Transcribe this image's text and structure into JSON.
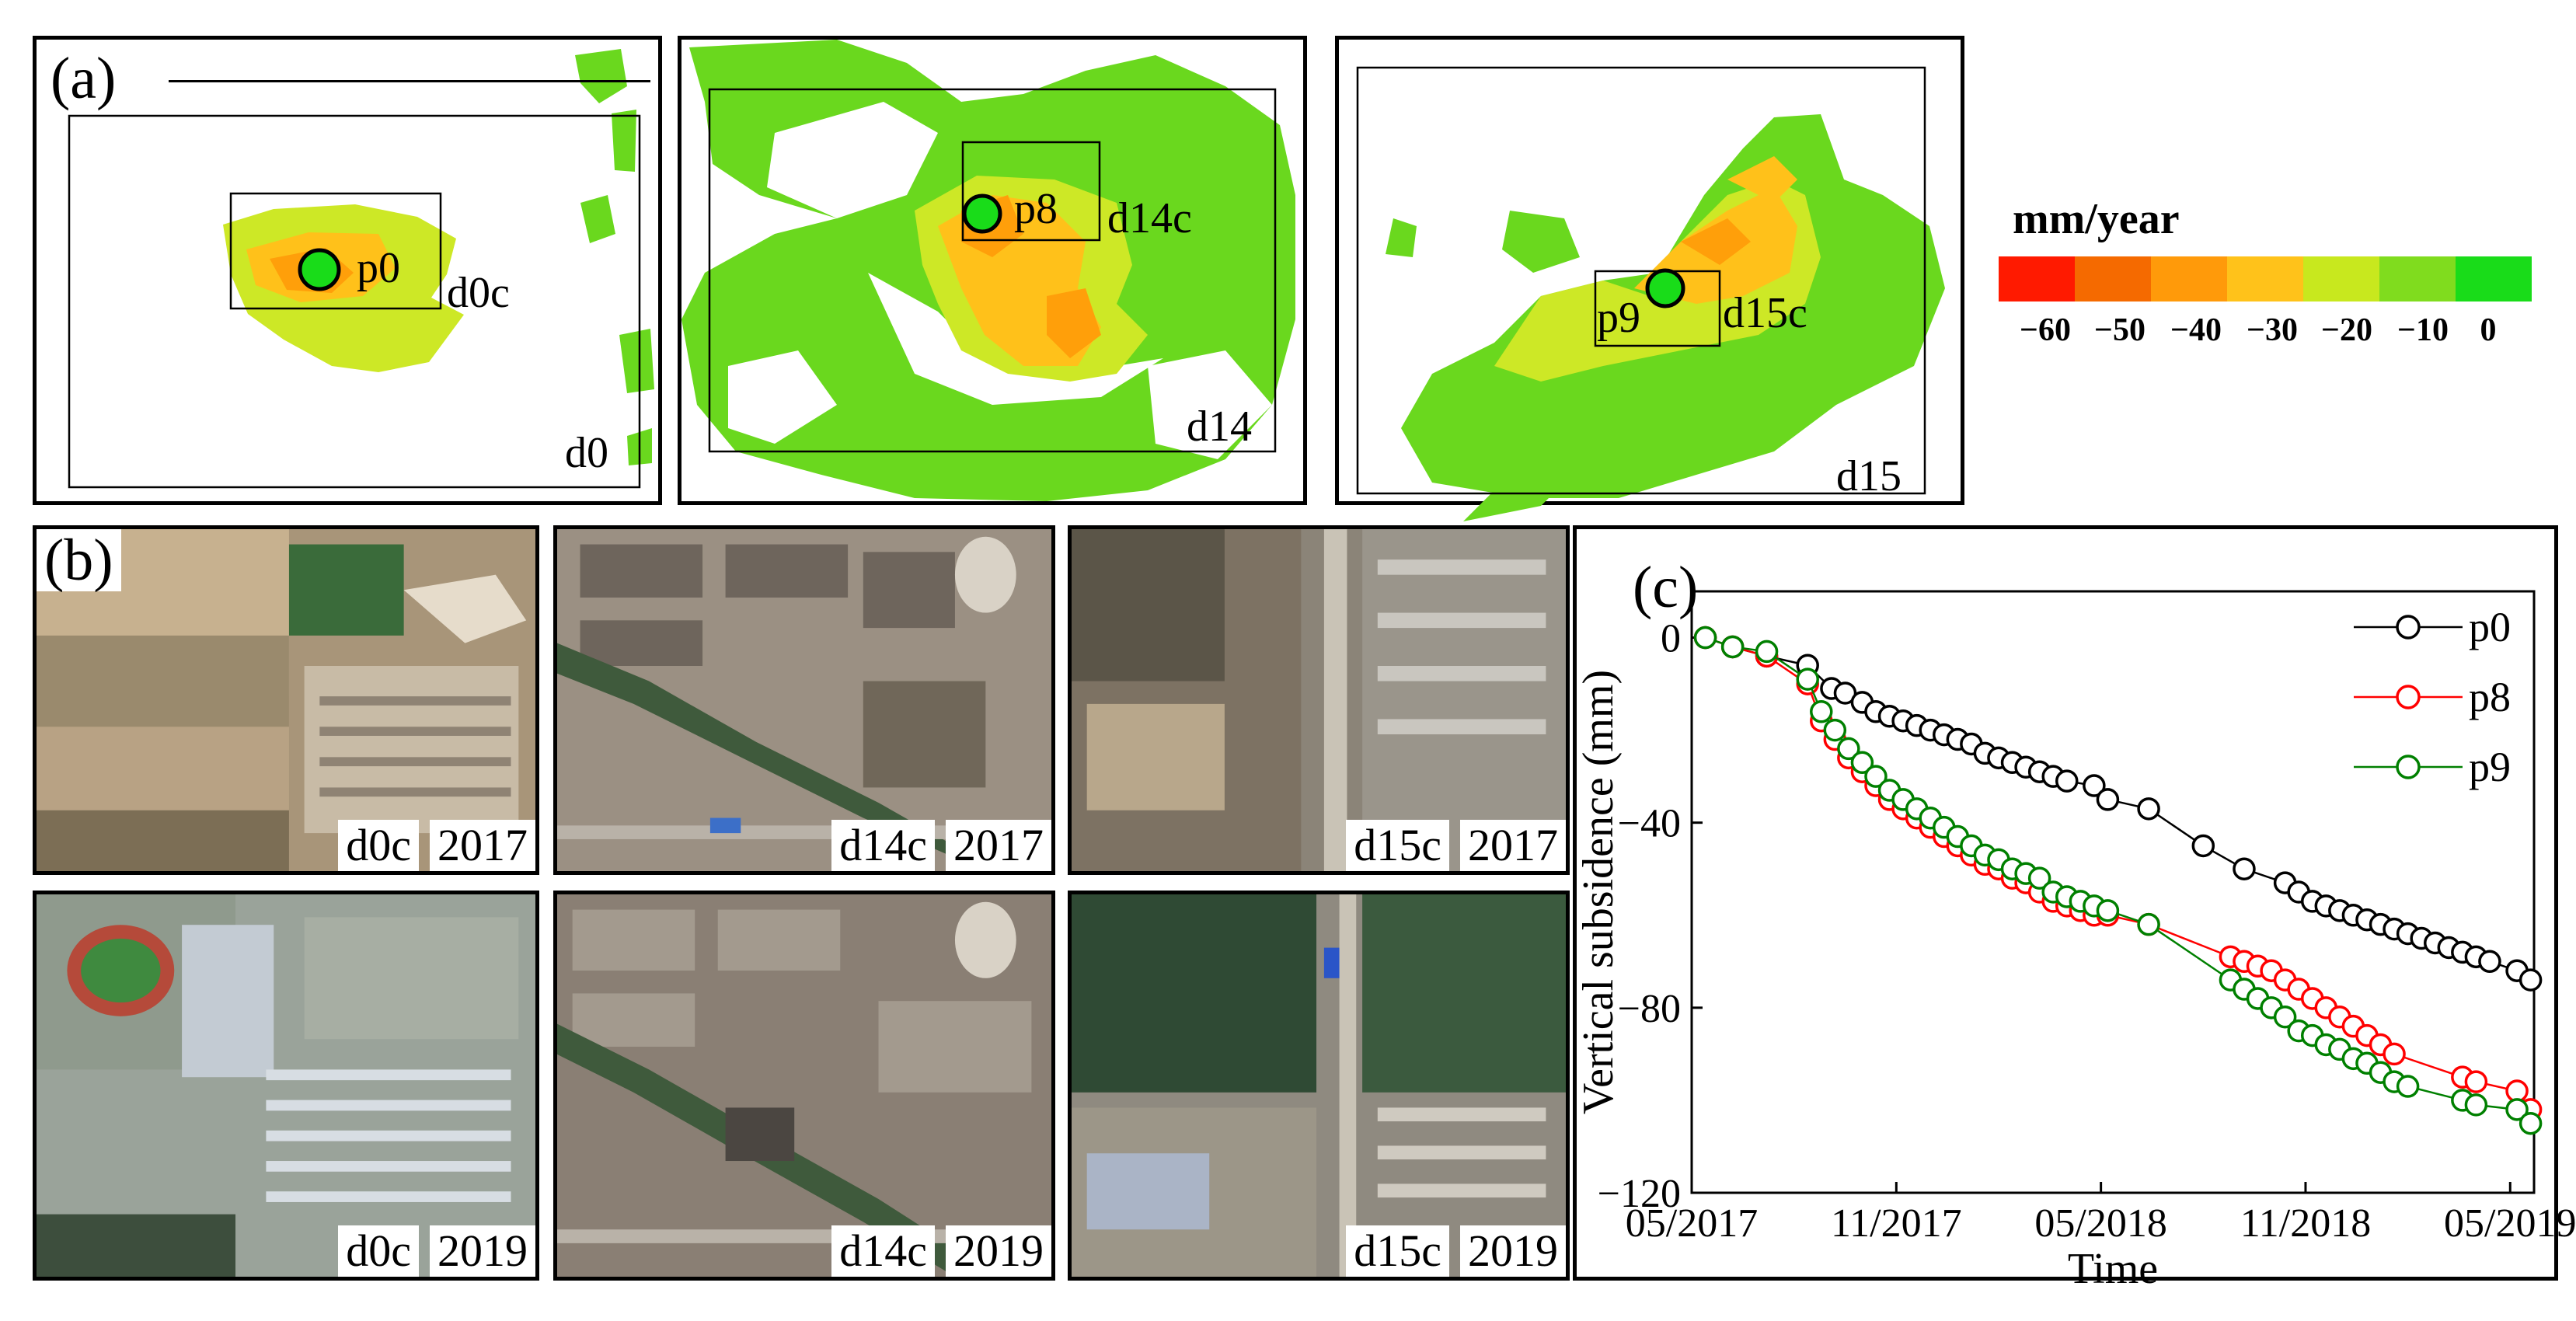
{
  "panel_a": {
    "label": "(a)",
    "maps": [
      {
        "region": "d0",
        "crop": "d0c",
        "point": "p0"
      },
      {
        "region": "d14",
        "crop": "d14c",
        "point": "p8"
      },
      {
        "region": "d15",
        "crop": "d15c",
        "point": "p9"
      }
    ],
    "colorbar": {
      "title": "mm/year",
      "ticks": [
        "−60",
        "−50",
        "−40",
        "−30",
        "−20",
        "−10",
        "0"
      ],
      "colors": [
        "#ff1a00",
        "#f56a00",
        "#ff9a0a",
        "#ffc21a",
        "#c8e81e",
        "#80dc1e",
        "#19dc19"
      ]
    }
  },
  "panel_b": {
    "label": "(b)",
    "images": [
      {
        "crop": "d0c",
        "year": "2017"
      },
      {
        "crop": "d14c",
        "year": "2017"
      },
      {
        "crop": "d15c",
        "year": "2017"
      },
      {
        "crop": "d0c",
        "year": "2019"
      },
      {
        "crop": "d14c",
        "year": "2019"
      },
      {
        "crop": "d15c",
        "year": "2019"
      }
    ]
  },
  "panel_c": {
    "label": "(c)",
    "chart_data": {
      "type": "line",
      "xlabel": "Time",
      "ylabel": "Vertical subsidence (mm)",
      "x_tick_labels": [
        "05/2017",
        "11/2017",
        "05/2018",
        "11/2018",
        "05/2019"
      ],
      "x_tick_months": [
        0,
        6,
        12,
        18,
        24
      ],
      "y_ticks": [
        0,
        -40,
        -80,
        -120
      ],
      "ylim": [
        -120,
        10
      ],
      "xlim": [
        0,
        24.7
      ],
      "x_unit": "months since 05/2017",
      "series": [
        {
          "name": "p0",
          "color": "#000000",
          "x": [
            0.4,
            1.2,
            2.2,
            3.4,
            4.1,
            4.5,
            5.0,
            5.4,
            5.8,
            6.2,
            6.6,
            7.0,
            7.4,
            7.8,
            8.2,
            8.6,
            9.0,
            9.4,
            9.8,
            10.2,
            10.6,
            11.0,
            11.8,
            12.2,
            13.4,
            15.0,
            16.2,
            17.4,
            17.8,
            18.2,
            18.6,
            19.0,
            19.4,
            19.8,
            20.2,
            20.6,
            21.0,
            21.4,
            21.8,
            22.2,
            22.6,
            23.0,
            23.4,
            24.2,
            24.6
          ],
          "y": [
            0,
            -2,
            -4,
            -6,
            -11,
            -12,
            -14,
            -16,
            -17,
            -18,
            -19,
            -20,
            -21,
            -22,
            -23,
            -25,
            -26,
            -27,
            -28,
            -29,
            -30,
            -31,
            -32,
            -35,
            -37,
            -45,
            -50,
            -53,
            -55,
            -57,
            -58,
            -59,
            -60,
            -61,
            -62,
            -63,
            -64,
            -65,
            -66,
            -67,
            -68,
            -69,
            -70,
            -72,
            -74
          ]
        },
        {
          "name": "p8",
          "color": "#ff0000",
          "x": [
            0.4,
            1.2,
            2.2,
            3.4,
            3.8,
            4.2,
            4.6,
            5.0,
            5.4,
            5.8,
            6.2,
            6.6,
            7.0,
            7.4,
            7.8,
            8.2,
            8.6,
            9.0,
            9.4,
            9.8,
            10.2,
            10.6,
            11.0,
            11.4,
            11.8,
            12.2,
            13.4,
            15.8,
            16.2,
            16.6,
            17.0,
            17.4,
            17.8,
            18.2,
            18.6,
            19.0,
            19.4,
            19.8,
            20.2,
            20.6,
            22.6,
            23.0,
            24.2,
            24.6
          ],
          "y": [
            0,
            -2,
            -4,
            -10,
            -18,
            -22,
            -26,
            -29,
            -32,
            -35,
            -37,
            -39,
            -41,
            -43,
            -45,
            -47,
            -49,
            -50,
            -52,
            -53,
            -55,
            -57,
            -58,
            -59,
            -60,
            -60,
            -62,
            -69,
            -70,
            -71,
            -72,
            -74,
            -76,
            -78,
            -80,
            -82,
            -84,
            -86,
            -88,
            -90,
            -95,
            -96,
            -98,
            -102
          ]
        },
        {
          "name": "p9",
          "color": "#008000",
          "x": [
            0.4,
            1.2,
            2.2,
            3.4,
            3.8,
            4.2,
            4.6,
            5.0,
            5.4,
            5.8,
            6.2,
            6.6,
            7.0,
            7.4,
            7.8,
            8.2,
            8.6,
            9.0,
            9.4,
            9.8,
            10.2,
            10.6,
            11.0,
            11.4,
            11.8,
            12.2,
            13.4,
            15.8,
            16.2,
            16.6,
            17.0,
            17.4,
            17.8,
            18.2,
            18.6,
            19.0,
            19.4,
            19.8,
            20.2,
            20.6,
            21.0,
            22.6,
            23.0,
            24.2,
            24.6
          ],
          "y": [
            0,
            -2,
            -3,
            -9,
            -16,
            -20,
            -24,
            -27,
            -30,
            -33,
            -35,
            -37,
            -39,
            -41,
            -43,
            -45,
            -47,
            -48,
            -50,
            -51,
            -52,
            -55,
            -56,
            -57,
            -58,
            -59,
            -62,
            -74,
            -76,
            -78,
            -80,
            -82,
            -85,
            -86,
            -88,
            -89,
            -91,
            -92,
            -94,
            -96,
            -97,
            -100,
            -101,
            -102,
            -105
          ]
        }
      ]
    }
  }
}
